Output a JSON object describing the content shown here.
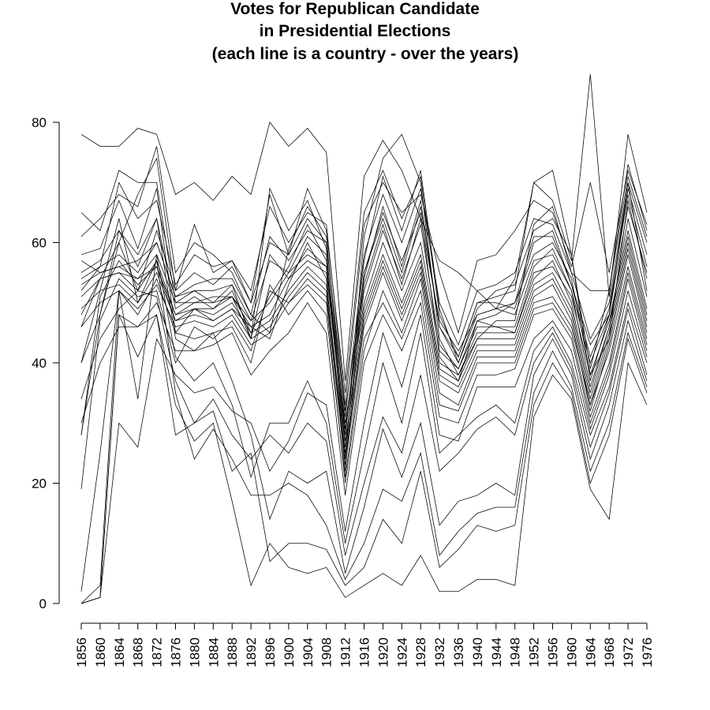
{
  "chart_data": {
    "type": "line",
    "title": "Votes for Republican Candidate\nin Presidential Elections\n(each line is a country - over the years)",
    "title_lines": [
      "Votes for Republican Candidate",
      "in Presidential Elections",
      "(each line is a country - over the years)"
    ],
    "xlabel": "",
    "ylabel": "",
    "x": [
      1856,
      1860,
      1864,
      1868,
      1872,
      1876,
      1880,
      1884,
      1888,
      1892,
      1896,
      1900,
      1904,
      1908,
      1912,
      1916,
      1920,
      1924,
      1928,
      1932,
      1936,
      1940,
      1944,
      1948,
      1952,
      1956,
      1960,
      1964,
      1968,
      1972,
      1976
    ],
    "x_tick_labels": [
      "1856",
      "1860",
      "1864",
      "1868",
      "1872",
      "1876",
      "1880",
      "1884",
      "1888",
      "1892",
      "1896",
      "1900",
      "1904",
      "1908",
      "1912",
      "1916",
      "1920",
      "1924",
      "1928",
      "1932",
      "1936",
      "1940",
      "1944",
      "1948",
      "1952",
      "1956",
      "1960",
      "1964",
      "1968",
      "1972",
      "1976"
    ],
    "y_ticks": [
      0,
      20,
      40,
      60,
      80
    ],
    "ylim": [
      0,
      88
    ],
    "grid": false,
    "legend": "none",
    "line_color": "#000000",
    "series": [
      {
        "values": [
          78,
          76,
          76,
          79,
          78,
          68,
          70,
          67,
          71,
          68,
          80,
          76,
          79,
          75,
          37,
          71,
          77,
          72,
          64,
          57,
          55,
          52,
          49,
          54,
          70,
          72,
          58,
          39,
          52,
          73,
          62
        ]
      },
      {
        "values": [
          65,
          62,
          72,
          70,
          70,
          50,
          52,
          50,
          53,
          44,
          69,
          62,
          67,
          59,
          24,
          61,
          74,
          78,
          70,
          44,
          38,
          44,
          47,
          47,
          63,
          66,
          55,
          44,
          50,
          70,
          60
        ]
      },
      {
        "values": [
          61,
          64,
          68,
          66,
          76,
          55,
          60,
          58,
          55,
          48,
          45,
          59,
          66,
          61,
          28,
          57,
          71,
          62,
          72,
          49,
          40,
          49,
          52,
          53,
          62,
          64,
          58,
          37,
          48,
          70,
          52
        ]
      },
      {
        "values": [
          58,
          59,
          67,
          59,
          69,
          45,
          49,
          47,
          49,
          46,
          44,
          53,
          60,
          54,
          22,
          55,
          65,
          57,
          65,
          41,
          37,
          47,
          48,
          50,
          58,
          60,
          54,
          38,
          44,
          67,
          54
        ]
      },
      {
        "values": [
          55,
          57,
          62,
          56,
          64,
          49,
          51,
          49,
          52,
          45,
          51,
          56,
          63,
          57,
          26,
          52,
          62,
          54,
          63,
          43,
          39,
          46,
          46,
          46,
          56,
          59,
          52,
          36,
          46,
          64,
          51
        ]
      },
      {
        "values": [
          54,
          56,
          58,
          55,
          60,
          51,
          52,
          52,
          53,
          47,
          50,
          55,
          58,
          56,
          30,
          50,
          60,
          52,
          60,
          42,
          39,
          47,
          46,
          45,
          55,
          56,
          51,
          38,
          47,
          62,
          49
        ]
      },
      {
        "values": [
          53,
          55,
          56,
          54,
          58,
          50,
          50,
          51,
          51,
          46,
          48,
          54,
          57,
          55,
          27,
          49,
          58,
          50,
          58,
          40,
          38,
          45,
          45,
          45,
          54,
          57,
          50,
          35,
          46,
          61,
          48
        ]
      },
      {
        "values": [
          51,
          54,
          55,
          52,
          57,
          48,
          49,
          48,
          50,
          45,
          47,
          52,
          56,
          53,
          25,
          48,
          57,
          49,
          57,
          39,
          37,
          44,
          44,
          44,
          53,
          55,
          49,
          34,
          45,
          60,
          47
        ]
      },
      {
        "values": [
          49,
          52,
          53,
          50,
          55,
          47,
          48,
          47,
          49,
          44,
          46,
          51,
          55,
          52,
          24,
          47,
          56,
          48,
          56,
          38,
          36,
          43,
          43,
          43,
          52,
          54,
          48,
          33,
          44,
          59,
          46
        ]
      },
      {
        "values": [
          46,
          50,
          52,
          49,
          53,
          46,
          47,
          46,
          48,
          43,
          45,
          50,
          54,
          51,
          23,
          46,
          55,
          47,
          55,
          37,
          35,
          42,
          42,
          42,
          51,
          53,
          47,
          32,
          43,
          58,
          45
        ]
      },
      {
        "values": [
          40,
          48,
          60,
          52,
          62,
          52,
          55,
          53,
          56,
          50,
          60,
          58,
          64,
          60,
          32,
          54,
          66,
          56,
          67,
          46,
          41,
          50,
          50,
          49,
          60,
          62,
          53,
          41,
          49,
          68,
          56
        ]
      },
      {
        "values": [
          28,
          51,
          57,
          53,
          56,
          48,
          50,
          50,
          51,
          47,
          57,
          55,
          61,
          58,
          29,
          53,
          63,
          53,
          64,
          47,
          42,
          48,
          49,
          48,
          57,
          58,
          52,
          40,
          48,
          66,
          55
        ]
      },
      {
        "values": [
          19,
          47,
          54,
          51,
          52,
          40,
          46,
          44,
          47,
          42,
          52,
          50,
          53,
          50,
          20,
          42,
          52,
          45,
          54,
          35,
          33,
          41,
          41,
          41,
          50,
          51,
          46,
          33,
          42,
          56,
          44
        ]
      },
      {
        "values": [
          2,
          25,
          52,
          48,
          54,
          45,
          44,
          45,
          46,
          40,
          53,
          48,
          52,
          48,
          21,
          44,
          50,
          44,
          52,
          33,
          32,
          40,
          40,
          40,
          49,
          50,
          45,
          31,
          40,
          55,
          43
        ]
      },
      {
        "values": [
          0,
          1,
          48,
          46,
          50,
          42,
          42,
          43,
          45,
          38,
          42,
          45,
          50,
          45,
          18,
          40,
          48,
          42,
          50,
          31,
          30,
          38,
          38,
          39,
          48,
          49,
          44,
          30,
          39,
          54,
          42
        ]
      },
      {
        "values": [
          0,
          1,
          30,
          26,
          44,
          38,
          35,
          36,
          32,
          30,
          22,
          27,
          35,
          33,
          12,
          30,
          45,
          36,
          48,
          28,
          27,
          36,
          36,
          36,
          44,
          47,
          42,
          29,
          38,
          52,
          41
        ]
      },
      {
        "values": [
          0,
          3,
          52,
          34,
          58,
          41,
          37,
          40,
          33,
          21,
          30,
          30,
          37,
          30,
          10,
          25,
          40,
          30,
          45,
          25,
          28,
          31,
          33,
          30,
          42,
          46,
          40,
          28,
          36,
          50,
          40
        ]
      },
      {
        "values": [
          0,
          1,
          48,
          41,
          48,
          28,
          30,
          34,
          28,
          24,
          28,
          25,
          30,
          27,
          8,
          20,
          31,
          25,
          38,
          22,
          25,
          29,
          31,
          28,
          40,
          45,
          39,
          26,
          35,
          49,
          38
        ]
      },
      {
        "values": [
          28,
          48,
          62,
          58,
          64,
          44,
          42,
          45,
          37,
          28,
          14,
          22,
          20,
          22,
          5,
          16,
          29,
          21,
          30,
          13,
          17,
          18,
          20,
          18,
          38,
          44,
          38,
          24,
          33,
          47,
          37
        ]
      },
      {
        "values": [
          40,
          52,
          64,
          50,
          57,
          35,
          24,
          29,
          24,
          18,
          18,
          20,
          18,
          13,
          4,
          10,
          19,
          17,
          25,
          8,
          12,
          15,
          16,
          16,
          35,
          42,
          36,
          22,
          30,
          45,
          36
        ]
      },
      {
        "values": [
          34,
          44,
          49,
          52,
          51,
          37,
          30,
          32,
          22,
          25,
          7,
          10,
          10,
          9,
          3,
          6,
          14,
          10,
          22,
          6,
          9,
          13,
          12,
          13,
          33,
          40,
          35,
          20,
          28,
          44,
          35
        ]
      },
      {
        "values": [
          30,
          40,
          46,
          46,
          48,
          33,
          27,
          30,
          17,
          3,
          10,
          6,
          5,
          6,
          1,
          3,
          5,
          3,
          8,
          2,
          2,
          4,
          4,
          3,
          31,
          38,
          34,
          19,
          14,
          40,
          33
        ]
      },
      {
        "values": [
          48,
          54,
          60,
          68,
          74,
          52,
          63,
          55,
          57,
          50,
          68,
          58,
          69,
          62,
          35,
          65,
          72,
          64,
          71,
          48,
          41,
          50,
          51,
          52,
          70,
          67,
          57,
          88,
          51,
          78,
          65
        ]
      },
      {
        "values": [
          52,
          56,
          70,
          64,
          67,
          53,
          58,
          56,
          57,
          52,
          66,
          60,
          65,
          63,
          33,
          63,
          70,
          65,
          68,
          55,
          45,
          57,
          58,
          62,
          67,
          65,
          56,
          70,
          55,
          72,
          63
        ]
      },
      {
        "values": [
          57,
          55,
          56,
          57,
          60,
          51,
          53,
          54,
          54,
          48,
          61,
          57,
          62,
          60,
          31,
          58,
          68,
          60,
          69,
          50,
          43,
          52,
          53,
          55,
          64,
          63,
          55,
          52,
          52,
          71,
          61
        ]
      },
      {
        "values": [
          46,
          54,
          55,
          54,
          56,
          47,
          49,
          49,
          51,
          44,
          58,
          54,
          59,
          56,
          28,
          55,
          64,
          55,
          66,
          46,
          40,
          48,
          49,
          50,
          61,
          61,
          53,
          43,
          48,
          69,
          58
        ]
      }
    ]
  }
}
